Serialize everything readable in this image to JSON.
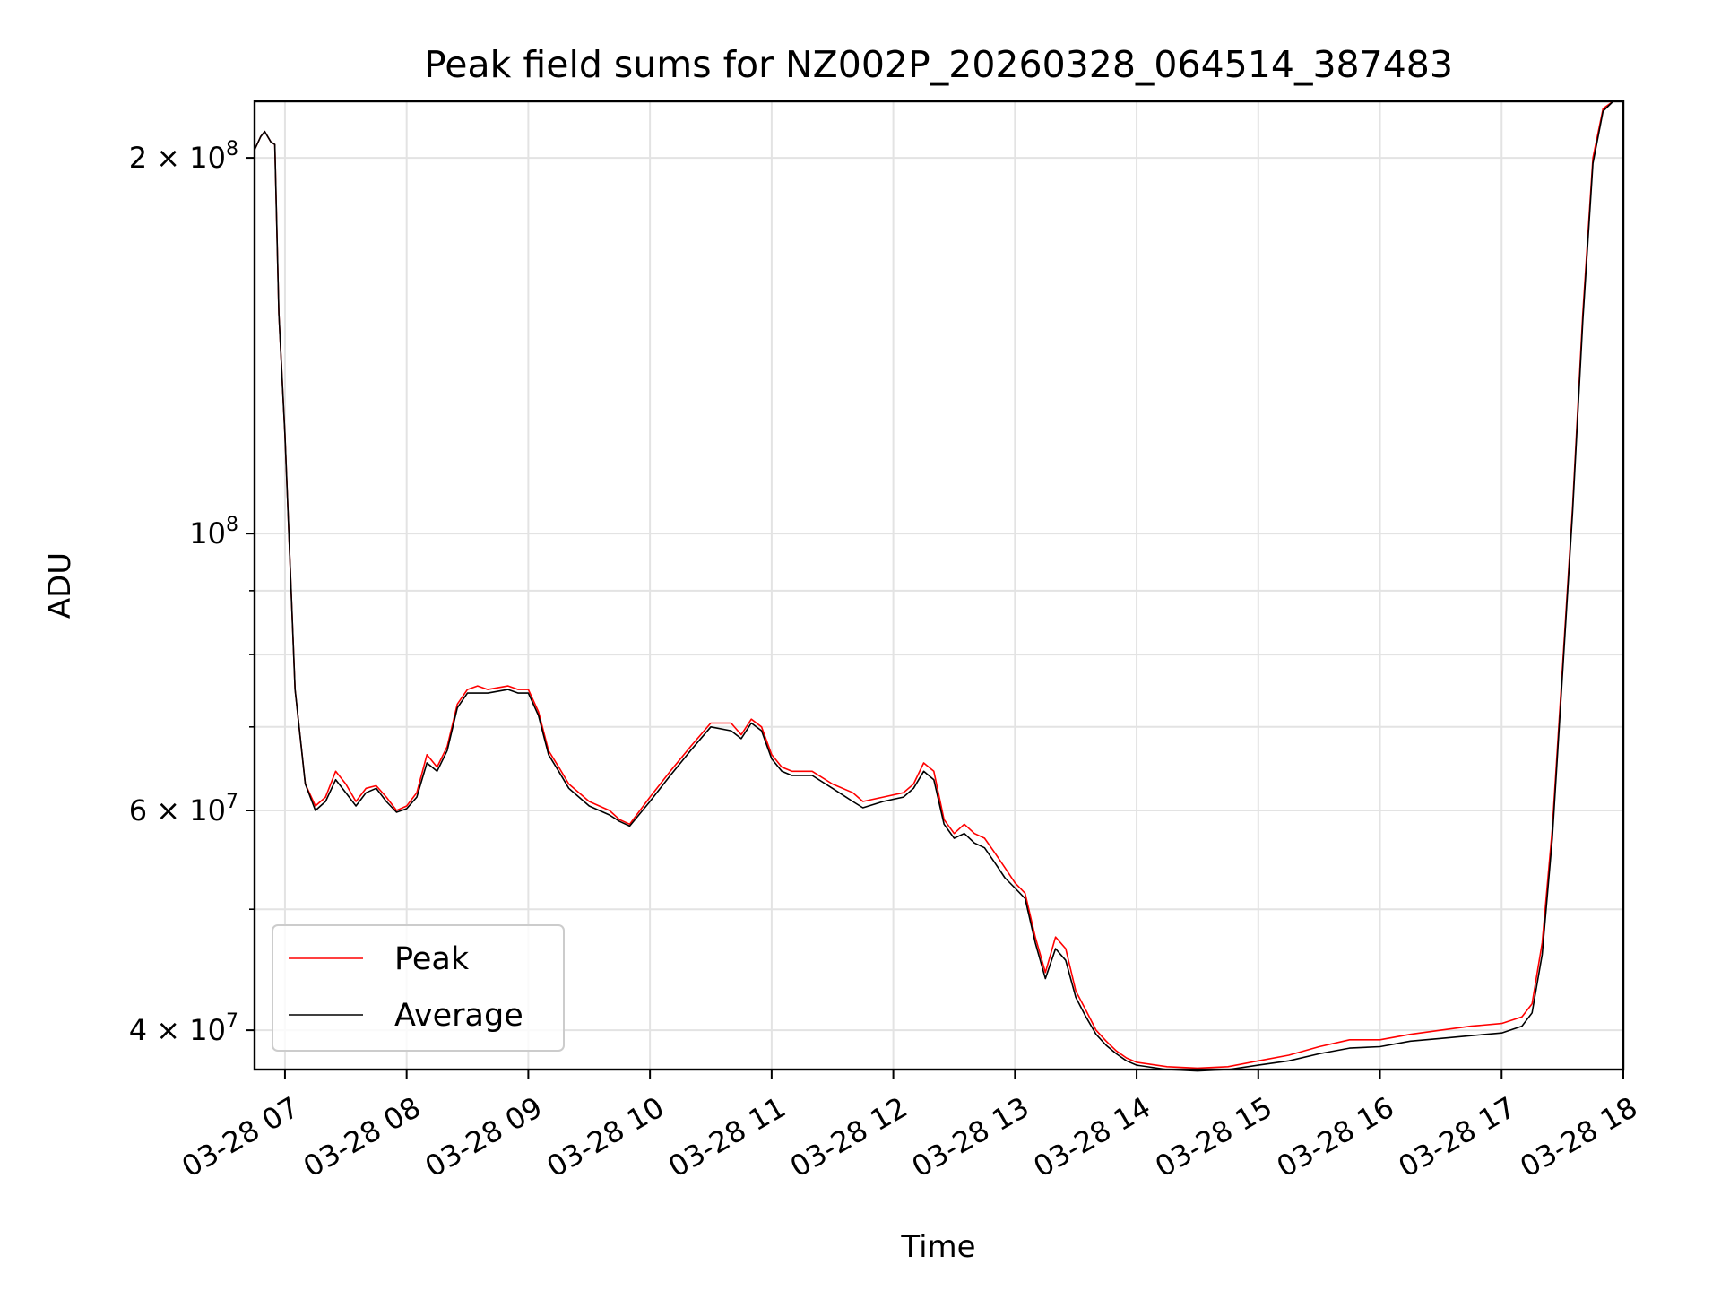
{
  "chart_data": {
    "type": "line",
    "title": "Peak field sums for NZ002P_20260328_064514_387483",
    "xlabel": "Time",
    "ylabel": "ADU",
    "yscale": "log",
    "ylim": [
      37200000,
      222000000
    ],
    "xlim": [
      "03-28 06:45",
      "03-28 18:00"
    ],
    "grid": true,
    "legend_position": "lower-left",
    "x_ticks": [
      "03-28 07",
      "03-28 08",
      "03-28 09",
      "03-28 10",
      "03-28 11",
      "03-28 12",
      "03-28 13",
      "03-28 14",
      "03-28 15",
      "03-28 16",
      "03-28 17",
      "03-28 18"
    ],
    "y_ticks": [
      {
        "value": 200000000,
        "mantissa": "2",
        "exponent": "8"
      },
      {
        "value": 100000000,
        "mantissa": "",
        "exponent": "8"
      },
      {
        "value": 60000000,
        "mantissa": "6",
        "exponent": "7"
      },
      {
        "value": 40000000,
        "mantissa": "4",
        "exponent": "7"
      }
    ],
    "y_minor_ticks": [
      50000000,
      70000000,
      80000000,
      90000000
    ],
    "series": [
      {
        "name": "Peak",
        "color": "#ff0000",
        "x": [
          "03-28 06:45",
          "03-28 06:48",
          "03-28 06:50",
          "03-28 06:53",
          "03-28 06:55",
          "03-28 06:57",
          "03-28 07:00",
          "03-28 07:05",
          "03-28 07:10",
          "03-28 07:15",
          "03-28 07:20",
          "03-28 07:25",
          "03-28 07:30",
          "03-28 07:35",
          "03-28 07:40",
          "03-28 07:45",
          "03-28 07:50",
          "03-28 07:55",
          "03-28 08:00",
          "03-28 08:05",
          "03-28 08:10",
          "03-28 08:15",
          "03-28 08:20",
          "03-28 08:25",
          "03-28 08:30",
          "03-28 08:35",
          "03-28 08:40",
          "03-28 08:50",
          "03-28 08:55",
          "03-28 09:00",
          "03-28 09:05",
          "03-28 09:10",
          "03-28 09:15",
          "03-28 09:20",
          "03-28 09:30",
          "03-28 09:40",
          "03-28 09:45",
          "03-28 09:50",
          "03-28 10:00",
          "03-28 10:10",
          "03-28 10:20",
          "03-28 10:30",
          "03-28 10:40",
          "03-28 10:45",
          "03-28 10:50",
          "03-28 10:55",
          "03-28 11:00",
          "03-28 11:05",
          "03-28 11:10",
          "03-28 11:20",
          "03-28 11:30",
          "03-28 11:40",
          "03-28 11:45",
          "03-28 11:55",
          "03-28 12:05",
          "03-28 12:10",
          "03-28 12:15",
          "03-28 12:20",
          "03-28 12:25",
          "03-28 12:30",
          "03-28 12:35",
          "03-28 12:40",
          "03-28 12:45",
          "03-28 12:50",
          "03-28 12:55",
          "03-28 13:00",
          "03-28 13:05",
          "03-28 13:10",
          "03-28 13:15",
          "03-28 13:20",
          "03-28 13:25",
          "03-28 13:30",
          "03-28 13:35",
          "03-28 13:40",
          "03-28 13:45",
          "03-28 13:50",
          "03-28 13:55",
          "03-28 14:00",
          "03-28 14:15",
          "03-28 14:30",
          "03-28 14:45",
          "03-28 15:00",
          "03-28 15:15",
          "03-28 15:30",
          "03-28 15:45",
          "03-28 16:00",
          "03-28 16:15",
          "03-28 16:30",
          "03-28 16:45",
          "03-28 17:00",
          "03-28 17:10",
          "03-28 17:15",
          "03-28 17:20",
          "03-28 17:25",
          "03-28 17:30",
          "03-28 17:35",
          "03-28 17:40",
          "03-28 17:45",
          "03-28 17:50",
          "03-28 17:55",
          "03-28 18:00"
        ],
        "y": [
          203000000,
          208000000,
          210000000,
          206000000,
          205000000,
          150000000,
          120000000,
          75000000,
          63000000,
          60500000,
          61500000,
          64500000,
          63000000,
          61000000,
          62500000,
          62800000,
          61500000,
          60000000,
          60500000,
          62000000,
          66500000,
          65000000,
          67500000,
          73000000,
          75000000,
          75500000,
          75000000,
          75500000,
          75000000,
          75000000,
          72000000,
          67000000,
          65000000,
          63000000,
          61000000,
          60000000,
          59000000,
          58500000,
          61500000,
          64500000,
          67500000,
          70500000,
          70500000,
          69000000,
          71000000,
          70000000,
          66500000,
          65000000,
          64500000,
          64500000,
          63000000,
          62000000,
          61000000,
          61500000,
          62000000,
          63000000,
          65500000,
          64500000,
          59000000,
          57500000,
          58500000,
          57500000,
          57000000,
          55500000,
          54000000,
          52500000,
          51500000,
          47500000,
          44500000,
          47500000,
          46500000,
          43000000,
          41500000,
          40000000,
          39200000,
          38500000,
          38000000,
          37700000,
          37400000,
          37300000,
          37400000,
          37800000,
          38200000,
          38800000,
          39300000,
          39300000,
          39700000,
          40000000,
          40300000,
          40500000,
          41000000,
          42000000,
          47000000,
          58000000,
          78000000,
          105000000,
          150000000,
          200000000,
          219000000,
          222000000,
          222000000
        ]
      },
      {
        "name": "Average",
        "color": "#000000",
        "x": [
          "03-28 06:45",
          "03-28 06:48",
          "03-28 06:50",
          "03-28 06:53",
          "03-28 06:55",
          "03-28 06:57",
          "03-28 07:00",
          "03-28 07:05",
          "03-28 07:10",
          "03-28 07:15",
          "03-28 07:20",
          "03-28 07:25",
          "03-28 07:30",
          "03-28 07:35",
          "03-28 07:40",
          "03-28 07:45",
          "03-28 07:50",
          "03-28 07:55",
          "03-28 08:00",
          "03-28 08:05",
          "03-28 08:10",
          "03-28 08:15",
          "03-28 08:20",
          "03-28 08:25",
          "03-28 08:30",
          "03-28 08:35",
          "03-28 08:40",
          "03-28 08:50",
          "03-28 08:55",
          "03-28 09:00",
          "03-28 09:05",
          "03-28 09:10",
          "03-28 09:15",
          "03-28 09:20",
          "03-28 09:30",
          "03-28 09:40",
          "03-28 09:45",
          "03-28 09:50",
          "03-28 10:00",
          "03-28 10:10",
          "03-28 10:20",
          "03-28 10:30",
          "03-28 10:40",
          "03-28 10:45",
          "03-28 10:50",
          "03-28 10:55",
          "03-28 11:00",
          "03-28 11:05",
          "03-28 11:10",
          "03-28 11:20",
          "03-28 11:30",
          "03-28 11:40",
          "03-28 11:45",
          "03-28 11:55",
          "03-28 12:05",
          "03-28 12:10",
          "03-28 12:15",
          "03-28 12:20",
          "03-28 12:25",
          "03-28 12:30",
          "03-28 12:35",
          "03-28 12:40",
          "03-28 12:45",
          "03-28 12:50",
          "03-28 12:55",
          "03-28 13:00",
          "03-28 13:05",
          "03-28 13:10",
          "03-28 13:15",
          "03-28 13:20",
          "03-28 13:25",
          "03-28 13:30",
          "03-28 13:35",
          "03-28 13:40",
          "03-28 13:45",
          "03-28 13:50",
          "03-28 13:55",
          "03-28 14:00",
          "03-28 14:15",
          "03-28 14:30",
          "03-28 14:45",
          "03-28 15:00",
          "03-28 15:15",
          "03-28 15:30",
          "03-28 15:45",
          "03-28 16:00",
          "03-28 16:15",
          "03-28 16:30",
          "03-28 16:45",
          "03-28 17:00",
          "03-28 17:10",
          "03-28 17:15",
          "03-28 17:20",
          "03-28 17:25",
          "03-28 17:30",
          "03-28 17:35",
          "03-28 17:40",
          "03-28 17:45",
          "03-28 17:50",
          "03-28 17:55",
          "03-28 18:00"
        ],
        "y": [
          203000000,
          208000000,
          210000000,
          206000000,
          205000000,
          150000000,
          120000000,
          75000000,
          63000000,
          60000000,
          61000000,
          63500000,
          62000000,
          60500000,
          62000000,
          62500000,
          61000000,
          59800000,
          60200000,
          61500000,
          65500000,
          64500000,
          67000000,
          72500000,
          74500000,
          74500000,
          74500000,
          75000000,
          74500000,
          74500000,
          71500000,
          66500000,
          64500000,
          62500000,
          60500000,
          59500000,
          58800000,
          58300000,
          61000000,
          64000000,
          67000000,
          70000000,
          69500000,
          68500000,
          70500000,
          69500000,
          66000000,
          64500000,
          64000000,
          64000000,
          62500000,
          61000000,
          60300000,
          61000000,
          61500000,
          62500000,
          64500000,
          63500000,
          58500000,
          57000000,
          57500000,
          56500000,
          56000000,
          54500000,
          53000000,
          52000000,
          51000000,
          47000000,
          44000000,
          46500000,
          45500000,
          42500000,
          41000000,
          39700000,
          38900000,
          38300000,
          37800000,
          37500000,
          37200000,
          37100000,
          37200000,
          37500000,
          37800000,
          38300000,
          38700000,
          38800000,
          39200000,
          39400000,
          39600000,
          39800000,
          40300000,
          41300000,
          46000000,
          57000000,
          77000000,
          104000000,
          148000000,
          198000000,
          218000000,
          222000000,
          222000000
        ]
      }
    ]
  }
}
